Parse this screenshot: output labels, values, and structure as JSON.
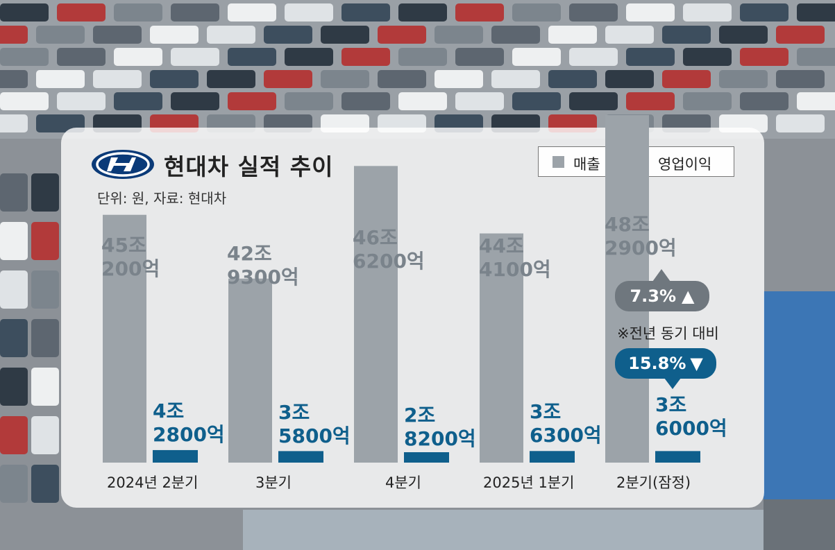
{
  "chart_data": {
    "type": "bar",
    "title": "현대차 실적 추이",
    "unit_note": "단위: 원, 자료: 현대차",
    "legend_position": "top-right",
    "grid": false,
    "categories": [
      "2024년 2분기",
      "3분기",
      "4분기",
      "2025년 1분기",
      "2분기(잠정)"
    ],
    "series": [
      {
        "name": "매출",
        "color": "#9ca3a9",
        "values_eok": [
          450200,
          429300,
          466200,
          444100,
          482900
        ],
        "labels": [
          [
            "45조",
            "200억"
          ],
          [
            "42조",
            "9300억"
          ],
          [
            "46조",
            "6200억"
          ],
          [
            "44조",
            "4100억"
          ],
          [
            "48조",
            "2900억"
          ]
        ]
      },
      {
        "name": "영업이익",
        "color": "#0f5f8c",
        "values_eok": [
          42800,
          35800,
          28200,
          36300,
          36000
        ],
        "labels": [
          [
            "4조",
            "2800억"
          ],
          [
            "3조",
            "5800억"
          ],
          [
            "2조",
            "8200억"
          ],
          [
            "3조",
            "6300억"
          ],
          [
            "3조",
            "6000억"
          ]
        ]
      }
    ],
    "annotations": {
      "revenue_change": "7.3%",
      "revenue_arrow": "▲",
      "operating_change": "15.8%",
      "operating_arrow": "▼",
      "note": "※전년 동기 대비"
    }
  },
  "colors": {
    "revenue": "#9ca3a9",
    "operating": "#0f5f8c",
    "logo": "#0a3a78"
  }
}
